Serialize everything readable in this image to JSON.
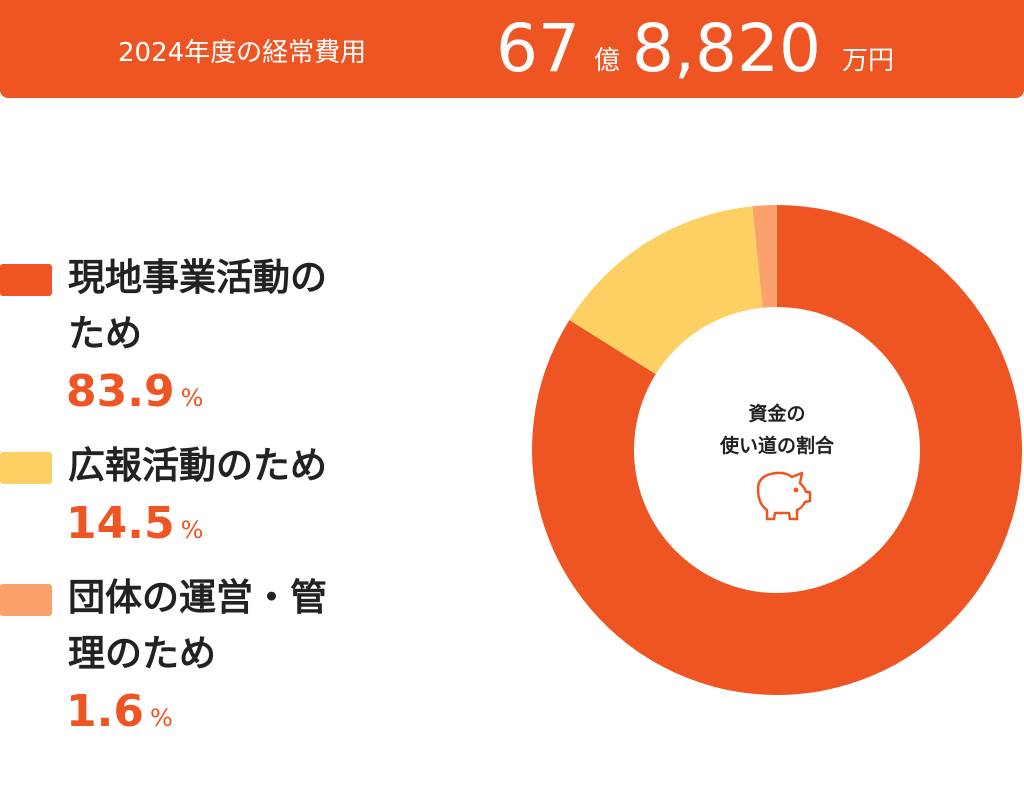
{
  "header": {
    "label": "2024年度の経常費用",
    "amount_oku": "67",
    "oku": "億",
    "amount_man": "8,820",
    "man_yen": "万円"
  },
  "chart_data": {
    "type": "pie",
    "donut": true,
    "center_label": [
      "資金の",
      "使い道の割合"
    ],
    "categories": [
      "現地事業活動のため",
      "広報活動のため",
      "団体の運営・管理のため"
    ],
    "values": [
      83.9,
      14.5,
      1.6
    ],
    "value_unit": "%",
    "colors": [
      "#ee5522",
      "#fcd062",
      "#fba26c"
    ]
  }
}
